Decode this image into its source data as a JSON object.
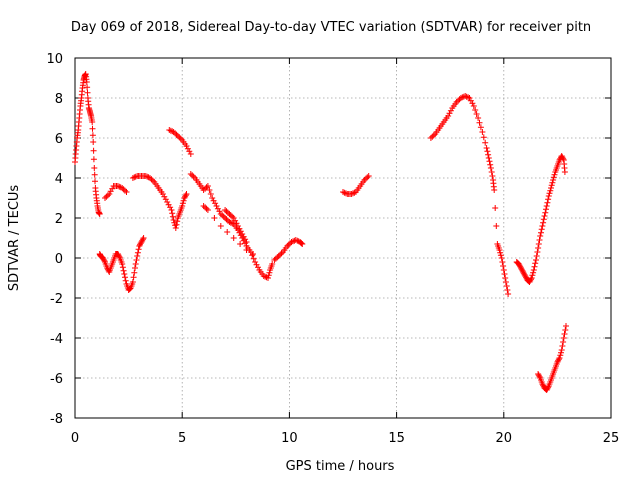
{
  "chart_data": {
    "type": "scatter",
    "title": "Day 069 of 2018, Sidereal Day-to-day VTEC variation (SDTVAR) for receiver pitn",
    "xlabel": "GPS time / hours",
    "ylabel": "SDTVAR / TECUs",
    "xlim": [
      0,
      25
    ],
    "ylim": [
      -8,
      10
    ],
    "xticks": [
      0,
      5,
      10,
      15,
      20,
      25
    ],
    "yticks": [
      -8,
      -6,
      -4,
      -2,
      0,
      2,
      4,
      6,
      8,
      10
    ],
    "xtick_labels": [
      "0",
      "5",
      "10",
      "15",
      "20",
      "25"
    ],
    "ytick_labels": [
      "-8",
      "-6",
      "-4",
      "-2",
      "0",
      "2",
      "4",
      "6",
      "8",
      "10"
    ],
    "grid": true,
    "marker": "+",
    "color": "#ff0000",
    "series": [
      {
        "name": "pitn",
        "points": [
          [
            0.0,
            4.8
          ],
          [
            0.05,
            5.4
          ],
          [
            0.1,
            6.0
          ],
          [
            0.15,
            6.4
          ],
          [
            0.2,
            7.0
          ],
          [
            0.25,
            7.6
          ],
          [
            0.3,
            8.0
          ],
          [
            0.35,
            8.5
          ],
          [
            0.4,
            8.9
          ],
          [
            0.45,
            9.1
          ],
          [
            0.5,
            9.2
          ],
          [
            0.55,
            8.8
          ],
          [
            0.6,
            8.0
          ],
          [
            0.65,
            7.5
          ],
          [
            0.7,
            7.3
          ],
          [
            0.75,
            7.1
          ],
          [
            0.8,
            6.8
          ],
          [
            0.85,
            5.8
          ],
          [
            0.9,
            4.5
          ],
          [
            0.95,
            3.5
          ],
          [
            1.0,
            3.0
          ],
          [
            1.05,
            2.6
          ],
          [
            1.1,
            2.3
          ],
          [
            1.15,
            2.2
          ],
          [
            1.15,
            0.2
          ],
          [
            1.2,
            0.1
          ],
          [
            1.3,
            0.0
          ],
          [
            1.4,
            -0.2
          ],
          [
            1.5,
            -0.5
          ],
          [
            1.6,
            -0.7
          ],
          [
            1.7,
            -0.4
          ],
          [
            1.8,
            -0.1
          ],
          [
            1.9,
            0.2
          ],
          [
            2.0,
            0.2
          ],
          [
            2.1,
            0.0
          ],
          [
            2.2,
            -0.3
          ],
          [
            2.3,
            -0.8
          ],
          [
            2.4,
            -1.3
          ],
          [
            2.5,
            -1.6
          ],
          [
            2.6,
            -1.5
          ],
          [
            2.7,
            -1.2
          ],
          [
            2.8,
            -0.5
          ],
          [
            2.9,
            0.1
          ],
          [
            3.0,
            0.6
          ],
          [
            3.1,
            0.8
          ],
          [
            3.2,
            1.0
          ],
          [
            1.4,
            3.0
          ],
          [
            1.6,
            3.2
          ],
          [
            1.8,
            3.6
          ],
          [
            2.0,
            3.6
          ],
          [
            2.2,
            3.5
          ],
          [
            2.4,
            3.3
          ],
          [
            2.7,
            4.0
          ],
          [
            2.9,
            4.1
          ],
          [
            3.1,
            4.1
          ],
          [
            3.3,
            4.1
          ],
          [
            3.5,
            4.0
          ],
          [
            3.7,
            3.8
          ],
          [
            3.9,
            3.5
          ],
          [
            4.1,
            3.2
          ],
          [
            4.3,
            2.8
          ],
          [
            4.5,
            2.4
          ],
          [
            4.6,
            1.9
          ],
          [
            4.7,
            1.5
          ],
          [
            4.8,
            2.0
          ],
          [
            4.9,
            2.3
          ],
          [
            5.0,
            2.6
          ],
          [
            5.1,
            3.0
          ],
          [
            5.2,
            3.2
          ],
          [
            4.4,
            6.4
          ],
          [
            4.6,
            6.3
          ],
          [
            4.8,
            6.1
          ],
          [
            5.0,
            5.9
          ],
          [
            5.2,
            5.6
          ],
          [
            5.4,
            5.2
          ],
          [
            5.4,
            4.2
          ],
          [
            5.6,
            4.0
          ],
          [
            5.8,
            3.7
          ],
          [
            6.0,
            3.4
          ],
          [
            6.2,
            3.6
          ],
          [
            6.4,
            3.0
          ],
          [
            6.6,
            2.6
          ],
          [
            6.8,
            2.2
          ],
          [
            7.0,
            2.0
          ],
          [
            7.2,
            1.8
          ],
          [
            7.4,
            1.7
          ],
          [
            7.6,
            1.4
          ],
          [
            7.8,
            1.0
          ],
          [
            8.0,
            0.6
          ],
          [
            8.2,
            0.3
          ],
          [
            8.4,
            -0.2
          ],
          [
            8.6,
            -0.6
          ],
          [
            8.8,
            -0.9
          ],
          [
            9.0,
            -1.0
          ],
          [
            9.1,
            -0.6
          ],
          [
            9.2,
            -0.3
          ],
          [
            6.0,
            2.6
          ],
          [
            6.2,
            2.4
          ],
          [
            6.5,
            2.0
          ],
          [
            6.8,
            1.6
          ],
          [
            7.1,
            1.3
          ],
          [
            7.4,
            1.0
          ],
          [
            7.7,
            0.7
          ],
          [
            8.0,
            0.4
          ],
          [
            8.3,
            0.2
          ],
          [
            7.0,
            2.4
          ],
          [
            7.2,
            2.2
          ],
          [
            7.4,
            2.0
          ],
          [
            7.6,
            1.6
          ],
          [
            7.8,
            1.2
          ],
          [
            8.0,
            0.8
          ],
          [
            9.3,
            -0.1
          ],
          [
            9.5,
            0.1
          ],
          [
            9.7,
            0.3
          ],
          [
            9.9,
            0.6
          ],
          [
            10.1,
            0.8
          ],
          [
            10.3,
            0.9
          ],
          [
            10.5,
            0.8
          ],
          [
            10.6,
            0.7
          ],
          [
            12.5,
            3.3
          ],
          [
            12.7,
            3.2
          ],
          [
            12.9,
            3.2
          ],
          [
            13.1,
            3.3
          ],
          [
            13.3,
            3.6
          ],
          [
            13.5,
            3.9
          ],
          [
            13.7,
            4.1
          ],
          [
            16.6,
            6.0
          ],
          [
            16.8,
            6.2
          ],
          [
            17.0,
            6.5
          ],
          [
            17.2,
            6.8
          ],
          [
            17.4,
            7.1
          ],
          [
            17.6,
            7.5
          ],
          [
            17.8,
            7.8
          ],
          [
            18.0,
            8.0
          ],
          [
            18.2,
            8.1
          ],
          [
            18.4,
            8.0
          ],
          [
            18.6,
            7.6
          ],
          [
            18.8,
            7.0
          ],
          [
            19.0,
            6.3
          ],
          [
            19.2,
            5.5
          ],
          [
            19.3,
            5.0
          ],
          [
            19.4,
            4.5
          ],
          [
            19.5,
            3.9
          ],
          [
            19.55,
            3.4
          ],
          [
            19.7,
            0.7
          ],
          [
            19.8,
            0.4
          ],
          [
            19.9,
            0.0
          ],
          [
            20.0,
            -0.6
          ],
          [
            20.1,
            -1.2
          ],
          [
            20.2,
            -1.8
          ],
          [
            20.6,
            -0.2
          ],
          [
            20.7,
            -0.3
          ],
          [
            20.8,
            -0.5
          ],
          [
            20.9,
            -0.7
          ],
          [
            21.0,
            -0.9
          ],
          [
            21.1,
            -1.1
          ],
          [
            21.2,
            -1.2
          ],
          [
            21.3,
            -1.0
          ],
          [
            21.4,
            -0.6
          ],
          [
            21.5,
            -0.1
          ],
          [
            21.6,
            0.5
          ],
          [
            21.7,
            1.1
          ],
          [
            21.8,
            1.6
          ],
          [
            21.9,
            2.1
          ],
          [
            22.0,
            2.6
          ],
          [
            22.1,
            3.1
          ],
          [
            22.2,
            3.5
          ],
          [
            22.3,
            3.9
          ],
          [
            22.4,
            4.3
          ],
          [
            22.5,
            4.6
          ],
          [
            22.6,
            4.9
          ],
          [
            22.7,
            5.1
          ],
          [
            22.8,
            4.9
          ],
          [
            22.85,
            4.3
          ],
          [
            21.6,
            -5.8
          ],
          [
            21.7,
            -6.0
          ],
          [
            21.8,
            -6.3
          ],
          [
            21.9,
            -6.5
          ],
          [
            22.0,
            -6.6
          ],
          [
            22.1,
            -6.4
          ],
          [
            22.2,
            -6.1
          ],
          [
            22.3,
            -5.8
          ],
          [
            22.4,
            -5.5
          ],
          [
            22.5,
            -5.2
          ],
          [
            22.6,
            -5.0
          ],
          [
            22.7,
            -4.6
          ],
          [
            22.8,
            -4.0
          ],
          [
            22.9,
            -3.4
          ]
        ]
      }
    ]
  }
}
